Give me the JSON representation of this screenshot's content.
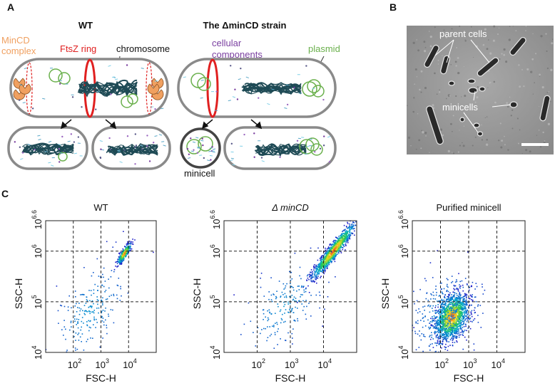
{
  "panel_a": {
    "letter": "A",
    "wt_title": "WT",
    "mutant_title": "The ΔminCD strain",
    "labels": {
      "mincd_line1": "MinCD",
      "mincd_line2": "complex",
      "ftsz": "FtsZ ring",
      "chromosome": "chromosome",
      "cellular_line1": "cellular",
      "cellular_line2": "components",
      "plasmid": "plasmid",
      "minicell": "minicell"
    },
    "colors": {
      "mincd": "#f0a060",
      "ftsz": "#e02020",
      "chromosome": "#1e4a55",
      "cellular": "#7a3fa0",
      "plasmid": "#6ab04c",
      "cell_wall": "#8a8a8a"
    }
  },
  "panel_b": {
    "letter": "B",
    "labels": {
      "parent_cells": "parent cells",
      "minicells": "minicells"
    }
  },
  "panel_c": {
    "letter": "C"
  },
  "chart_data": [
    {
      "type": "scatter",
      "title": "WT",
      "xlabel": "FSC-H",
      "ylabel": "SSC-H",
      "x_scale": "log",
      "y_scale": "log",
      "xlim_exp": [
        1,
        5
      ],
      "ylim_exp": [
        4,
        6.6
      ],
      "x_ticks": [
        {
          "base": "10",
          "exp": "2"
        },
        {
          "base": "10",
          "exp": "3"
        },
        {
          "base": "10",
          "exp": "4"
        }
      ],
      "y_ticks": [
        {
          "base": "10",
          "exp": "4"
        },
        {
          "base": "10",
          "exp": "5"
        },
        {
          "base": "10",
          "exp": "6"
        },
        {
          "base": "10",
          "exp": "6.6"
        }
      ],
      "grid": true,
      "clusters": [
        {
          "x_exp": 3.85,
          "y_exp": 5.95,
          "sx": 0.12,
          "sy": 0.1,
          "rho": 0.85,
          "n": 380,
          "dense": true
        },
        {
          "x_exp": 2.6,
          "y_exp": 4.8,
          "sx": 0.6,
          "sy": 0.45,
          "rho": 0.5,
          "n": 220,
          "dense": false
        }
      ]
    },
    {
      "type": "scatter",
      "title": "Δ minCD",
      "xlabel": "FSC-H",
      "ylabel": "SSC-H",
      "x_scale": "log",
      "y_scale": "log",
      "xlim_exp": [
        1,
        5
      ],
      "ylim_exp": [
        4,
        6.6
      ],
      "x_ticks": [
        {
          "base": "10",
          "exp": "2"
        },
        {
          "base": "10",
          "exp": "3"
        },
        {
          "base": "10",
          "exp": "4"
        }
      ],
      "y_ticks": [
        {
          "base": "10",
          "exp": "4"
        },
        {
          "base": "10",
          "exp": "5"
        },
        {
          "base": "10",
          "exp": "6"
        },
        {
          "base": "10",
          "exp": "6.6"
        }
      ],
      "grid": true,
      "clusters": [
        {
          "x_exp": 4.3,
          "y_exp": 6.0,
          "sx": 0.32,
          "sy": 0.27,
          "rho": 0.95,
          "n": 1100,
          "dense": true
        },
        {
          "x_exp": 2.8,
          "y_exp": 4.9,
          "sx": 0.55,
          "sy": 0.4,
          "rho": 0.55,
          "n": 200,
          "dense": false
        }
      ]
    },
    {
      "type": "scatter",
      "title": "Purified minicell",
      "xlabel": "FSC-H",
      "ylabel": "SSC-H",
      "x_scale": "log",
      "y_scale": "log",
      "xlim_exp": [
        1,
        5
      ],
      "ylim_exp": [
        4,
        6.6
      ],
      "x_ticks": [
        {
          "base": "10",
          "exp": "2"
        },
        {
          "base": "10",
          "exp": "3"
        },
        {
          "base": "10",
          "exp": "4"
        }
      ],
      "y_ticks": [
        {
          "base": "10",
          "exp": "4"
        },
        {
          "base": "10",
          "exp": "5"
        },
        {
          "base": "10",
          "exp": "6"
        },
        {
          "base": "10",
          "exp": "6.6"
        }
      ],
      "grid": true,
      "clusters": [
        {
          "x_exp": 2.4,
          "y_exp": 4.7,
          "sx": 0.28,
          "sy": 0.22,
          "rho": 0.35,
          "n": 1400,
          "dense": true
        },
        {
          "x_exp": 2.2,
          "y_exp": 4.75,
          "sx": 0.55,
          "sy": 0.35,
          "rho": 0.2,
          "n": 450,
          "dense": false
        }
      ]
    }
  ]
}
